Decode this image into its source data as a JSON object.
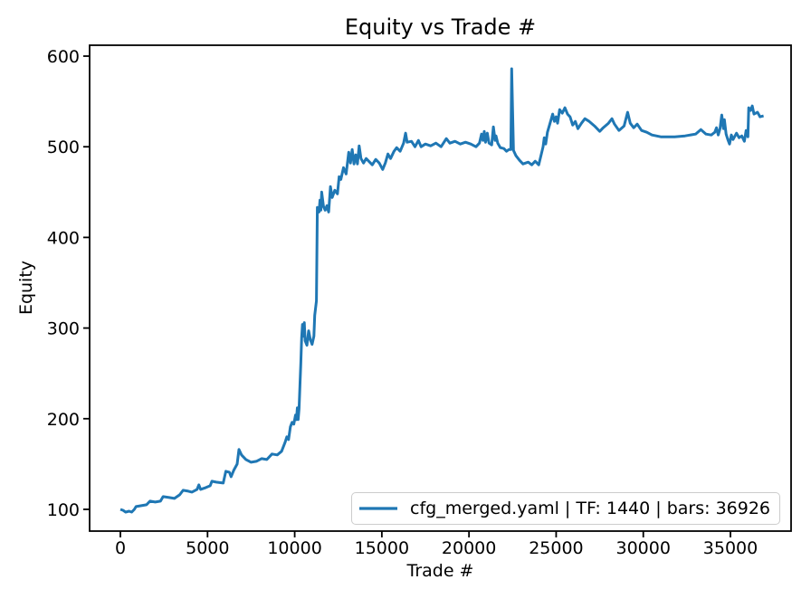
{
  "figure": {
    "title": "Equity vs Trade #",
    "xlabel": "Trade #",
    "ylabel": "Equity"
  },
  "chart_data": {
    "type": "line",
    "title": "Equity vs Trade #",
    "xlabel": "Trade #",
    "ylabel": "Equity",
    "grid": false,
    "line_color": "#1f77b4",
    "axis_color": "#000000",
    "legend": {
      "position": "lower right",
      "entries": [
        {
          "label": "cfg_merged.yaml | TF: 1440 | bars: 36926",
          "color": "#1f77b4"
        }
      ]
    },
    "x_ticks": [
      0,
      5000,
      10000,
      15000,
      20000,
      25000,
      30000,
      35000
    ],
    "y_ticks": [
      100,
      200,
      300,
      400,
      500,
      600
    ],
    "xlim": [
      -1766,
      38479
    ],
    "ylim": [
      76,
      612
    ],
    "series": [
      {
        "name": "cfg_merged.yaml | TF: 1440 | bars: 36926",
        "points": [
          [
            0,
            100
          ],
          [
            150,
            99
          ],
          [
            300,
            97
          ],
          [
            500,
            98
          ],
          [
            650,
            97
          ],
          [
            800,
            100
          ],
          [
            900,
            103
          ],
          [
            1200,
            104
          ],
          [
            1500,
            105
          ],
          [
            1700,
            109
          ],
          [
            2000,
            108
          ],
          [
            2300,
            109
          ],
          [
            2450,
            114
          ],
          [
            2800,
            113
          ],
          [
            3100,
            112
          ],
          [
            3400,
            116
          ],
          [
            3600,
            121
          ],
          [
            3900,
            120
          ],
          [
            4100,
            119
          ],
          [
            4400,
            122
          ],
          [
            4500,
            127
          ],
          [
            4600,
            122
          ],
          [
            4900,
            124
          ],
          [
            5150,
            126
          ],
          [
            5250,
            131
          ],
          [
            5500,
            130
          ],
          [
            5900,
            129
          ],
          [
            6050,
            142
          ],
          [
            6250,
            141
          ],
          [
            6350,
            136
          ],
          [
            6500,
            143
          ],
          [
            6700,
            150
          ],
          [
            6800,
            166
          ],
          [
            6950,
            160
          ],
          [
            7200,
            155
          ],
          [
            7500,
            152
          ],
          [
            7800,
            153
          ],
          [
            8100,
            156
          ],
          [
            8400,
            155
          ],
          [
            8700,
            161
          ],
          [
            9000,
            160
          ],
          [
            9250,
            164
          ],
          [
            9450,
            174
          ],
          [
            9550,
            180
          ],
          [
            9650,
            177
          ],
          [
            9750,
            191
          ],
          [
            9850,
            196
          ],
          [
            9950,
            194
          ],
          [
            10050,
            204
          ],
          [
            10100,
            199
          ],
          [
            10150,
            212
          ],
          [
            10200,
            199
          ],
          [
            10250,
            211
          ],
          [
            10300,
            237
          ],
          [
            10350,
            260
          ],
          [
            10400,
            290
          ],
          [
            10450,
            304
          ],
          [
            10500,
            291
          ],
          [
            10550,
            306
          ],
          [
            10600,
            286
          ],
          [
            10700,
            281
          ],
          [
            10800,
            297
          ],
          [
            10900,
            287
          ],
          [
            11000,
            282
          ],
          [
            11100,
            291
          ],
          [
            11150,
            314
          ],
          [
            11250,
            330
          ],
          [
            11300,
            433
          ],
          [
            11400,
            428
          ],
          [
            11450,
            441
          ],
          [
            11500,
            430
          ],
          [
            11550,
            450
          ],
          [
            11650,
            434
          ],
          [
            11750,
            430
          ],
          [
            11850,
            435
          ],
          [
            11950,
            428
          ],
          [
            12050,
            456
          ],
          [
            12150,
            444
          ],
          [
            12300,
            452
          ],
          [
            12450,
            448
          ],
          [
            12550,
            467
          ],
          [
            12650,
            464
          ],
          [
            12800,
            477
          ],
          [
            12950,
            470
          ],
          [
            13100,
            494
          ],
          [
            13200,
            482
          ],
          [
            13300,
            497
          ],
          [
            13400,
            481
          ],
          [
            13500,
            491
          ],
          [
            13600,
            481
          ],
          [
            13700,
            501
          ],
          [
            13800,
            487
          ],
          [
            13950,
            482
          ],
          [
            14100,
            487
          ],
          [
            14250,
            484
          ],
          [
            14450,
            480
          ],
          [
            14650,
            486
          ],
          [
            14850,
            482
          ],
          [
            15050,
            475
          ],
          [
            15200,
            482
          ],
          [
            15350,
            492
          ],
          [
            15500,
            487
          ],
          [
            15700,
            495
          ],
          [
            15850,
            499
          ],
          [
            16050,
            495
          ],
          [
            16250,
            504
          ],
          [
            16360,
            515
          ],
          [
            16450,
            505
          ],
          [
            16700,
            506
          ],
          [
            16900,
            500
          ],
          [
            17100,
            507
          ],
          [
            17250,
            500
          ],
          [
            17500,
            503
          ],
          [
            17800,
            501
          ],
          [
            18100,
            504
          ],
          [
            18400,
            500
          ],
          [
            18700,
            509
          ],
          [
            18900,
            504
          ],
          [
            19200,
            506
          ],
          [
            19500,
            503
          ],
          [
            19800,
            505
          ],
          [
            20100,
            503
          ],
          [
            20400,
            500
          ],
          [
            20600,
            504
          ],
          [
            20720,
            514
          ],
          [
            20800,
            507
          ],
          [
            20875,
            517
          ],
          [
            20950,
            505
          ],
          [
            21050,
            515
          ],
          [
            21150,
            504
          ],
          [
            21300,
            502
          ],
          [
            21400,
            522
          ],
          [
            21500,
            507
          ],
          [
            21550,
            512
          ],
          [
            21650,
            504
          ],
          [
            21800,
            499
          ],
          [
            22000,
            498
          ],
          [
            22150,
            495
          ],
          [
            22300,
            497
          ],
          [
            22400,
            497
          ],
          [
            22450,
            586
          ],
          [
            22550,
            496
          ],
          [
            22700,
            490
          ],
          [
            22900,
            485
          ],
          [
            23100,
            481
          ],
          [
            23400,
            483
          ],
          [
            23600,
            480
          ],
          [
            23800,
            484
          ],
          [
            24000,
            480
          ],
          [
            24150,
            492
          ],
          [
            24250,
            500
          ],
          [
            24320,
            510
          ],
          [
            24400,
            503
          ],
          [
            24500,
            516
          ],
          [
            24650,
            526
          ],
          [
            24800,
            536
          ],
          [
            24900,
            528
          ],
          [
            25000,
            533
          ],
          [
            25080,
            526
          ],
          [
            25200,
            541
          ],
          [
            25350,
            537
          ],
          [
            25500,
            543
          ],
          [
            25650,
            536
          ],
          [
            25800,
            533
          ],
          [
            25950,
            524
          ],
          [
            26100,
            528
          ],
          [
            26250,
            520
          ],
          [
            26450,
            526
          ],
          [
            26650,
            531
          ],
          [
            26900,
            528
          ],
          [
            27200,
            523
          ],
          [
            27500,
            517
          ],
          [
            27700,
            521
          ],
          [
            28000,
            526
          ],
          [
            28200,
            531
          ],
          [
            28350,
            525
          ],
          [
            28600,
            518
          ],
          [
            28900,
            523
          ],
          [
            29100,
            538
          ],
          [
            29250,
            526
          ],
          [
            29450,
            521
          ],
          [
            29650,
            525
          ],
          [
            29900,
            518
          ],
          [
            30200,
            516
          ],
          [
            30500,
            513
          ],
          [
            31000,
            511
          ],
          [
            31800,
            511
          ],
          [
            32400,
            512
          ],
          [
            33000,
            514
          ],
          [
            33300,
            519
          ],
          [
            33600,
            514
          ],
          [
            33900,
            513
          ],
          [
            34100,
            516
          ],
          [
            34200,
            521
          ],
          [
            34300,
            513
          ],
          [
            34400,
            520
          ],
          [
            34500,
            535
          ],
          [
            34600,
            520
          ],
          [
            34650,
            530
          ],
          [
            34750,
            514
          ],
          [
            34850,
            508
          ],
          [
            34950,
            503
          ],
          [
            35050,
            513
          ],
          [
            35150,
            508
          ],
          [
            35350,
            515
          ],
          [
            35500,
            510
          ],
          [
            35650,
            512
          ],
          [
            35800,
            506
          ],
          [
            35900,
            518
          ],
          [
            36000,
            511
          ],
          [
            36050,
            543
          ],
          [
            36150,
            540
          ],
          [
            36250,
            545
          ],
          [
            36350,
            536
          ],
          [
            36550,
            538
          ],
          [
            36700,
            533
          ],
          [
            36900,
            534
          ]
        ]
      }
    ]
  }
}
